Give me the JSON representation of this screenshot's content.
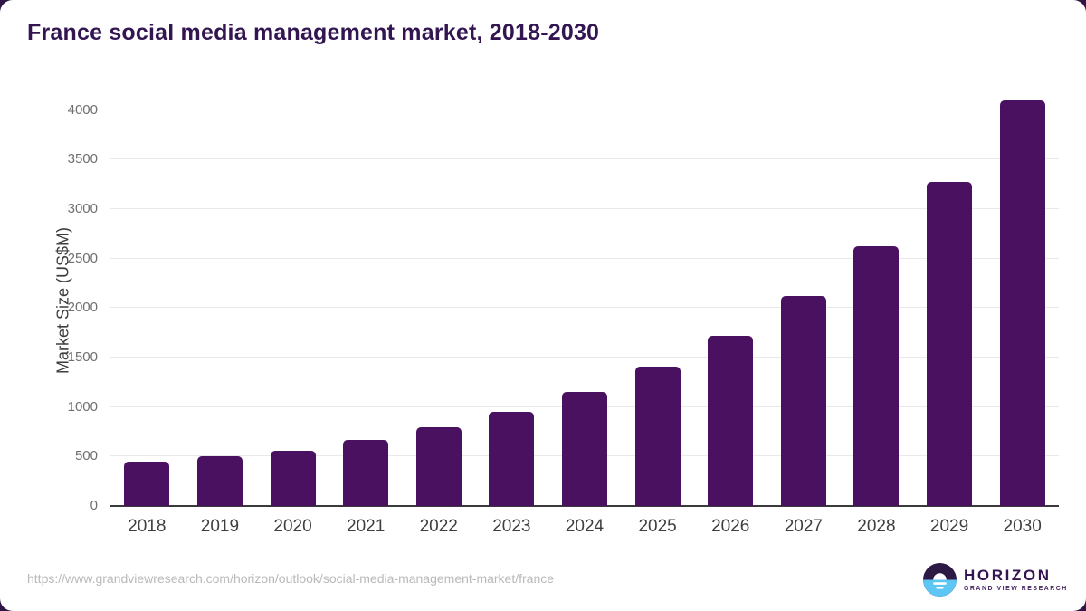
{
  "chart_data": {
    "type": "bar",
    "title": "France social media management market, 2018-2030",
    "categories": [
      "2018",
      "2019",
      "2020",
      "2021",
      "2022",
      "2023",
      "2024",
      "2025",
      "2026",
      "2027",
      "2028",
      "2029",
      "2030"
    ],
    "values": [
      450,
      500,
      560,
      665,
      800,
      955,
      1155,
      1405,
      1715,
      2125,
      2620,
      3270,
      4095
    ],
    "xlabel": "",
    "ylabel": "Market Size (US$M)",
    "ylim": [
      0,
      4000
    ],
    "yticks": [
      0,
      500,
      1000,
      1500,
      2000,
      2500,
      3000,
      3500,
      4000
    ],
    "grid": "horizontal-light",
    "legend": "none",
    "bar_color": "#4a1161"
  },
  "colors": {
    "title": "#331552",
    "bar": "#4a1161",
    "gridline": "#e9e9e9",
    "baseline": "#3a3a3a",
    "backdrop": "#2e1745",
    "logo_dark_purple": "#2c1a44",
    "logo_light_blue": "#5ec6f2"
  },
  "footer": {
    "source_url": "https://www.grandviewresearch.com/horizon/outlook/social-media-management-market/france",
    "logo": {
      "title": "HORIZON",
      "subtitle": "GRAND VIEW RESEARCH"
    }
  }
}
